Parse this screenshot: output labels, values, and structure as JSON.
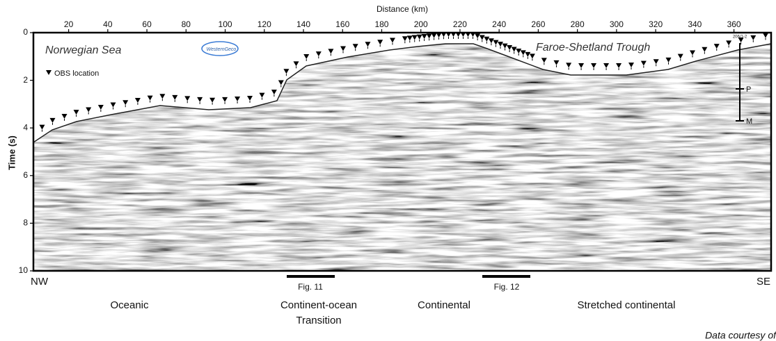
{
  "figure": {
    "x_axis": {
      "label": "Distance (km)",
      "lim": [
        2,
        379
      ],
      "ticks": [
        20,
        40,
        60,
        80,
        100,
        120,
        140,
        160,
        180,
        200,
        220,
        240,
        260,
        280,
        300,
        320,
        340,
        360
      ]
    },
    "y_axis": {
      "label": "Time (s)",
      "lim": [
        0,
        10
      ],
      "ticks": [
        0,
        2,
        4,
        6,
        8,
        10
      ]
    },
    "regions": {
      "left": "Norwegian Sea",
      "right": "Faroe-Shetland Trough"
    },
    "legend": "OBS location",
    "logo": "WesternGeco",
    "well": {
      "name": "206/1-2",
      "top": "P",
      "bottom": "M"
    },
    "ends": {
      "left": "NW",
      "right": "SE"
    },
    "figure_refs": [
      "Fig. 11",
      "Fig. 12"
    ],
    "domains": [
      "Oceanic",
      "Continent-ocean",
      "Transition",
      "Continental",
      "Stretched continental"
    ],
    "credit": "Data courtesy of"
  }
}
